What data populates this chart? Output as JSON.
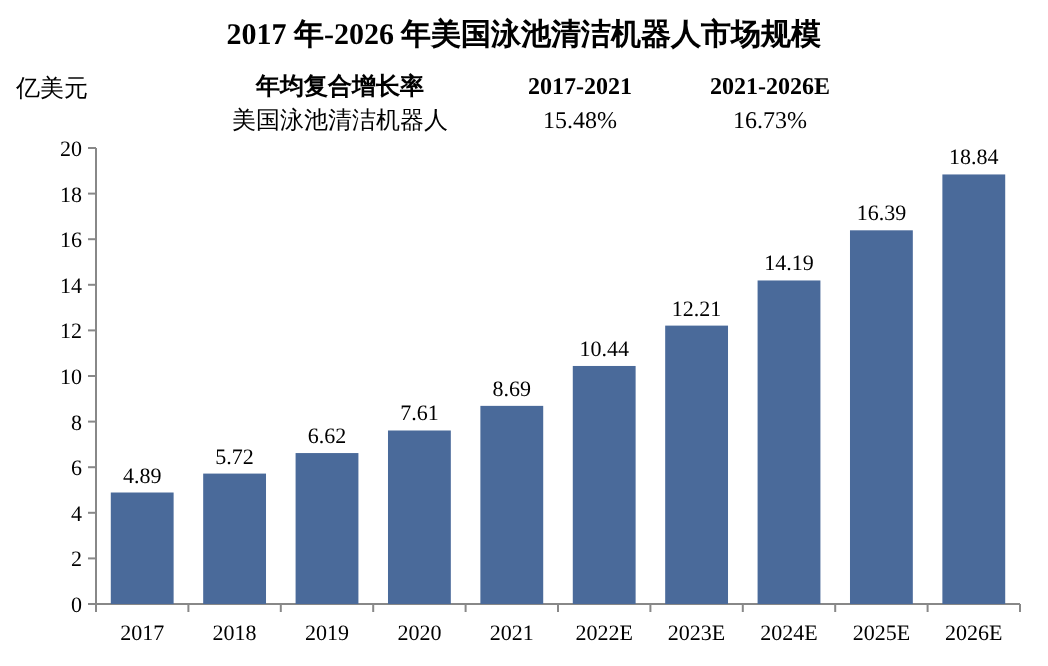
{
  "chart_data": {
    "type": "bar",
    "title": "2017 年-2026 年美国泳池清洁机器人市场规模",
    "ylabel": "亿美元",
    "categories": [
      "2017",
      "2018",
      "2019",
      "2020",
      "2021",
      "2022E",
      "2023E",
      "2024E",
      "2025E",
      "2026E"
    ],
    "values": [
      4.89,
      5.72,
      6.62,
      7.61,
      8.69,
      10.44,
      12.21,
      14.19,
      16.39,
      18.84
    ],
    "color": "#4a6a9a",
    "ylim": [
      0,
      20
    ],
    "yticks": [
      0,
      2,
      4,
      6,
      8,
      10,
      12,
      14,
      16,
      18,
      20
    ],
    "data_labels": true,
    "annotations": [
      "年均复合增长率",
      "2017-2021",
      "2021-2026E",
      "美国泳池清洁机器人",
      "15.48%",
      "16.73%"
    ]
  }
}
